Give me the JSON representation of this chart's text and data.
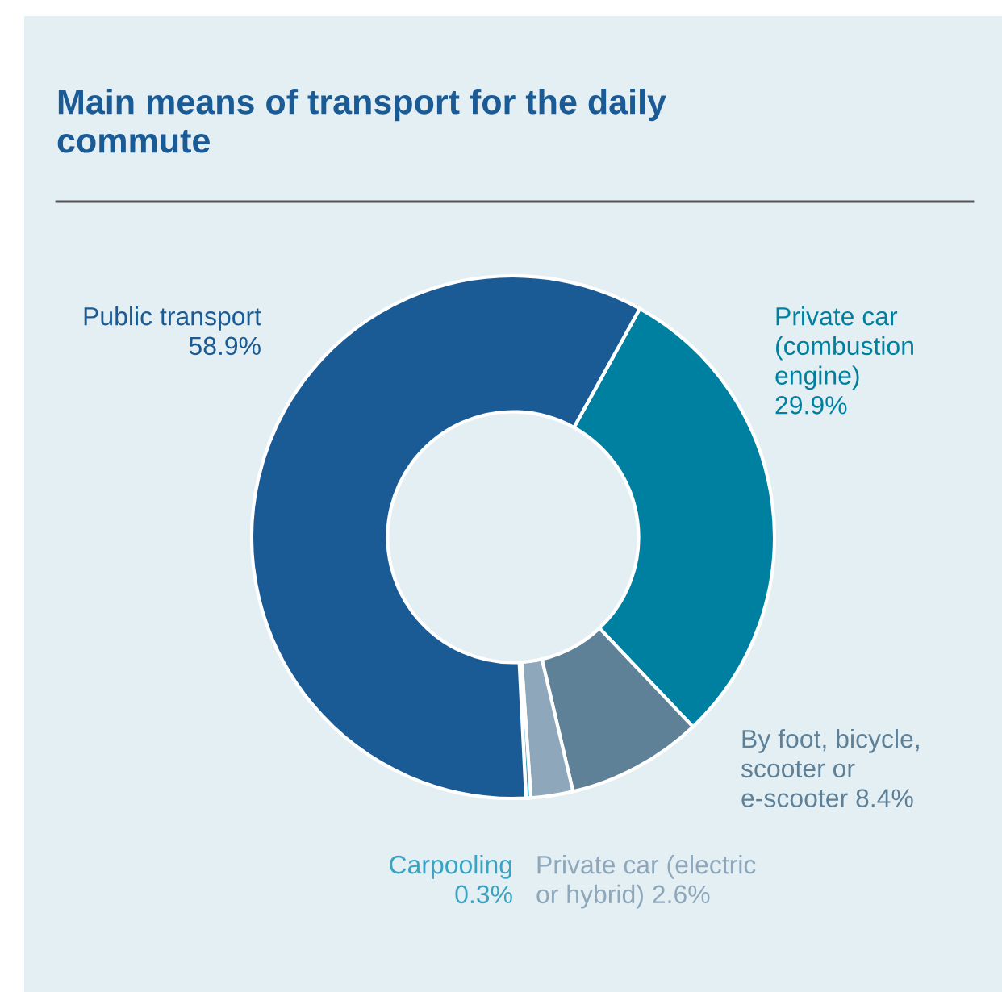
{
  "chart_data": {
    "type": "donut",
    "title": "Main means of transport for the daily\ncommute",
    "categories": [
      "Private car\n(combustion\nengine)",
      "By foot, bicycle,\nscooter or\ne-scooter",
      "Private car (electric\nor hybrid)",
      "Carpooling",
      "Public transport"
    ],
    "values": [
      29.9,
      8.4,
      2.6,
      0.3,
      58.9
    ],
    "value_labels": [
      "29.9%",
      "8.4%",
      "2.6%",
      "0.3%",
      "58.9%"
    ],
    "colors": [
      "#0080a0",
      "#5f8198",
      "#8ea7ba",
      "#3aa3c2",
      "#1b5b95"
    ]
  }
}
